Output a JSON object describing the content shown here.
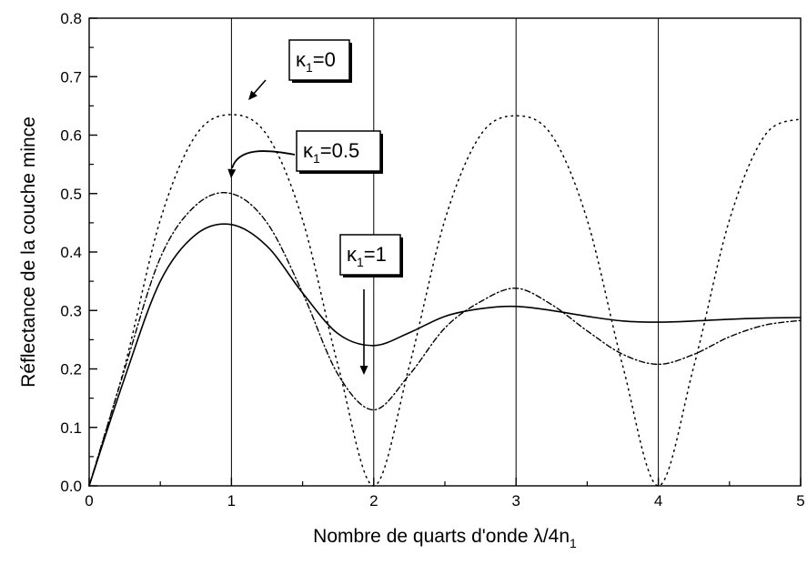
{
  "chart_data": {
    "type": "line",
    "xlabel": "Nombre de quarts d'onde λ/4n",
    "xlabel_sub": "1",
    "ylabel": "Réflectance de la couche mince",
    "xlim": [
      0,
      5
    ],
    "ylim": [
      0,
      0.8
    ],
    "x_ticks": [
      "0",
      "1",
      "2",
      "3",
      "4",
      "5"
    ],
    "y_ticks": [
      "0.0",
      "0.1",
      "0.2",
      "0.3",
      "0.4",
      "0.5",
      "0.6",
      "0.7",
      "0.8"
    ],
    "grid": "vertical lines at integer x",
    "series": [
      {
        "name": "κ1=0",
        "style": "dotted",
        "x": [
          0,
          0.25,
          0.5,
          0.75,
          1.0,
          1.25,
          1.5,
          1.75,
          2.0,
          2.25,
          2.5,
          2.75,
          3.0,
          3.25,
          3.5,
          3.75,
          4.0,
          4.25,
          4.5,
          4.75,
          5.0
        ],
        "y": [
          0,
          0.205,
          0.455,
          0.6,
          0.635,
          0.6,
          0.455,
          0.205,
          0,
          0.205,
          0.455,
          0.6,
          0.633,
          0.6,
          0.455,
          0.205,
          0,
          0.205,
          0.455,
          0.6,
          0.628
        ]
      },
      {
        "name": "κ1=0.5",
        "style": "dash-dot",
        "x": [
          0,
          0.25,
          0.5,
          0.75,
          1.0,
          1.25,
          1.5,
          1.75,
          2.0,
          2.25,
          2.5,
          2.75,
          3.0,
          3.25,
          3.5,
          3.75,
          4.0,
          4.25,
          4.5,
          4.75,
          5.0
        ],
        "y": [
          0,
          0.2,
          0.39,
          0.48,
          0.5,
          0.45,
          0.33,
          0.19,
          0.13,
          0.19,
          0.27,
          0.315,
          0.338,
          0.31,
          0.265,
          0.225,
          0.208,
          0.225,
          0.255,
          0.275,
          0.283
        ]
      },
      {
        "name": "κ1=1",
        "style": "solid",
        "x": [
          0,
          0.25,
          0.5,
          0.75,
          1.0,
          1.25,
          1.5,
          1.75,
          2.0,
          2.25,
          2.5,
          2.75,
          3.0,
          3.25,
          3.5,
          3.75,
          4.0,
          4.25,
          4.5,
          4.75,
          5.0
        ],
        "y": [
          0,
          0.185,
          0.35,
          0.43,
          0.447,
          0.41,
          0.33,
          0.26,
          0.24,
          0.262,
          0.29,
          0.303,
          0.307,
          0.3,
          0.29,
          0.282,
          0.28,
          0.282,
          0.285,
          0.287,
          0.288
        ]
      }
    ],
    "annotations": [
      {
        "main": "κ",
        "sub": "1",
        "rest": "=0"
      },
      {
        "main": "κ",
        "sub": "1",
        "rest": "=0.5"
      },
      {
        "main": "κ",
        "sub": "1",
        "rest": "=1"
      }
    ]
  }
}
